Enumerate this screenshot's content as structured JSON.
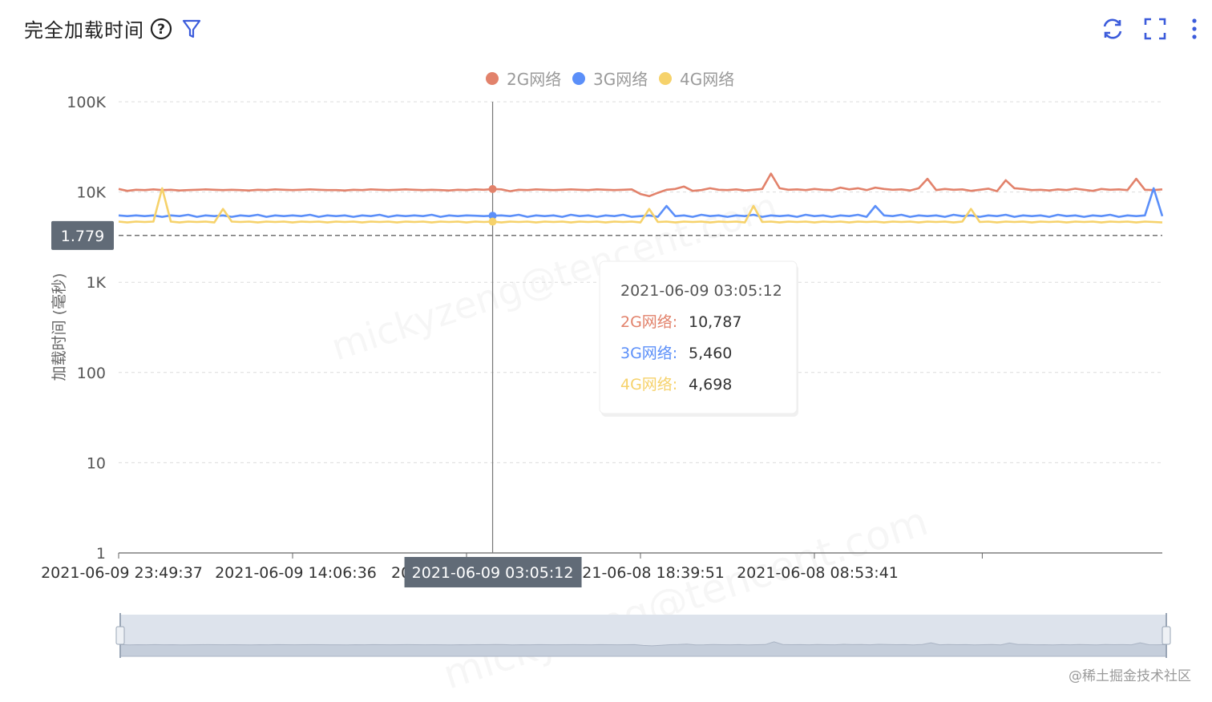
{
  "header": {
    "title": "完全加载时间",
    "icons": [
      "help-icon",
      "filter-icon",
      "refresh-icon",
      "fullscreen-icon",
      "more-icon"
    ],
    "accent_color": "#3b5bdb"
  },
  "watermark": {
    "credit": "@稀土掘金技术社区",
    "user_mark": "mickyzeng@tencent.com"
  },
  "chart_data": {
    "type": "line",
    "y_scale": "log",
    "ylabel": "加载时间 (毫秒)",
    "ylim": [
      1,
      100000
    ],
    "y_ticks": [
      "1",
      "10",
      "100",
      "1K",
      "10K",
      "100K"
    ],
    "x_tick_labels": [
      "2021-06-09 23:49:37",
      "2021-06-09 14:06:36",
      "2021-06-09 03:05:12",
      "2021-06-08 18:39:51",
      "2021-06-08 08:53:41"
    ],
    "x_tick_indices": [
      0,
      20,
      40,
      60,
      80
    ],
    "legend": [
      "2G网络",
      "3G网络",
      "4G网络"
    ],
    "legend_position": "top-center",
    "grid": true,
    "reference_line": {
      "label": "1.779",
      "value": 3300
    },
    "crosshair": {
      "index": 43,
      "x_label": "2021-06-09 03:05:12"
    },
    "tooltip": {
      "time": "2021-06-09 03:05:12",
      "rows": [
        {
          "name": "2G网络",
          "value": "10,787"
        },
        {
          "name": "3G网络",
          "value": "5,460"
        },
        {
          "name": "4G网络",
          "value": "4,698"
        }
      ]
    },
    "series": [
      {
        "name": "2G网络",
        "color": "#e2826b",
        "values": [
          10800,
          10300,
          10600,
          10500,
          10700,
          10500,
          10600,
          10400,
          10500,
          10600,
          10700,
          10600,
          10500,
          10600,
          10500,
          10400,
          10600,
          10500,
          10700,
          10600,
          10500,
          10600,
          10700,
          10600,
          10500,
          10500,
          10400,
          10600,
          10500,
          10700,
          10600,
          10500,
          10600,
          10700,
          10600,
          10500,
          10600,
          10500,
          10400,
          10600,
          10500,
          10700,
          10600,
          10787,
          10700,
          10200,
          10600,
          10500,
          10700,
          10600,
          10500,
          10600,
          10700,
          10600,
          10500,
          10700,
          10600,
          10500,
          10600,
          10700,
          9500,
          9000,
          9800,
          10600,
          10800,
          11500,
          10300,
          10500,
          11000,
          10600,
          10500,
          10700,
          10400,
          10600,
          10800,
          16000,
          11000,
          10600,
          10700,
          10500,
          10800,
          10600,
          10500,
          11200,
          10700,
          11000,
          10500,
          11200,
          10800,
          10600,
          10700,
          10400,
          11000,
          14000,
          10500,
          10800,
          10600,
          10700,
          10300,
          10600,
          10900,
          10200,
          13500,
          11000,
          10800,
          10500,
          10600,
          10400,
          10700,
          10500,
          10900,
          10600,
          10300,
          10800,
          10600,
          10700,
          10500,
          14000,
          10600,
          10500,
          10700
        ]
      },
      {
        "name": "3G网络",
        "color": "#5b8ff9",
        "values": [
          5500,
          5400,
          5500,
          5400,
          5500,
          5300,
          5500,
          5400,
          5600,
          5300,
          5500,
          5400,
          5500,
          5300,
          5500,
          5400,
          5600,
          5300,
          5500,
          5400,
          5500,
          5400,
          5600,
          5300,
          5500,
          5400,
          5500,
          5300,
          5500,
          5400,
          5600,
          5300,
          5500,
          5400,
          5500,
          5400,
          5600,
          5300,
          5500,
          5400,
          5500,
          5460,
          5400,
          5460,
          5500,
          5400,
          5600,
          5300,
          5500,
          5400,
          5500,
          5300,
          5600,
          5400,
          5500,
          5300,
          5500,
          5400,
          5600,
          5300,
          5400,
          5500,
          5300,
          7000,
          5400,
          5500,
          5300,
          5600,
          5400,
          5500,
          5300,
          5500,
          5400,
          5600,
          5300,
          5500,
          5400,
          5500,
          5300,
          5600,
          5400,
          5500,
          5300,
          5500,
          5400,
          5600,
          5300,
          7000,
          5500,
          5400,
          5600,
          5300,
          5500,
          5400,
          5500,
          5300,
          5600,
          5400,
          5500,
          5300,
          5500,
          5400,
          5600,
          5300,
          5500,
          5400,
          5500,
          5300,
          5600,
          5400,
          5500,
          5300,
          5500,
          5400,
          5600,
          5300,
          5500,
          5400,
          5500,
          11000,
          5400
        ]
      },
      {
        "name": "4G网络",
        "color": "#f6d26b",
        "values": [
          4700,
          4600,
          4700,
          4650,
          4700,
          11000,
          4700,
          4600,
          4700,
          4650,
          4700,
          4600,
          6500,
          4700,
          4650,
          4700,
          4600,
          4700,
          4650,
          4700,
          4600,
          4700,
          4650,
          4700,
          4600,
          4700,
          4650,
          4700,
          4600,
          4700,
          4650,
          4700,
          4600,
          4700,
          4650,
          4700,
          4600,
          4700,
          4650,
          4700,
          4600,
          4700,
          4650,
          4698,
          4600,
          4700,
          4650,
          4700,
          4600,
          4700,
          4650,
          4700,
          4600,
          4700,
          4650,
          4700,
          4600,
          4700,
          4650,
          4700,
          4600,
          6500,
          4650,
          4700,
          4600,
          4700,
          4650,
          4700,
          4600,
          4700,
          4650,
          4700,
          4600,
          7000,
          4650,
          4700,
          4600,
          4700,
          4650,
          4700,
          4600,
          4700,
          4650,
          4700,
          4600,
          4700,
          4650,
          4700,
          4600,
          4700,
          4650,
          4700,
          4600,
          4700,
          4650,
          4700,
          4600,
          4700,
          6500,
          4650,
          4700,
          4600,
          4700,
          4650,
          4700,
          4600,
          4700,
          4650,
          4700,
          4600,
          4700,
          4650,
          4700,
          4600,
          4700,
          4650,
          4700,
          4600,
          4700,
          4650,
          4600
        ]
      }
    ]
  }
}
